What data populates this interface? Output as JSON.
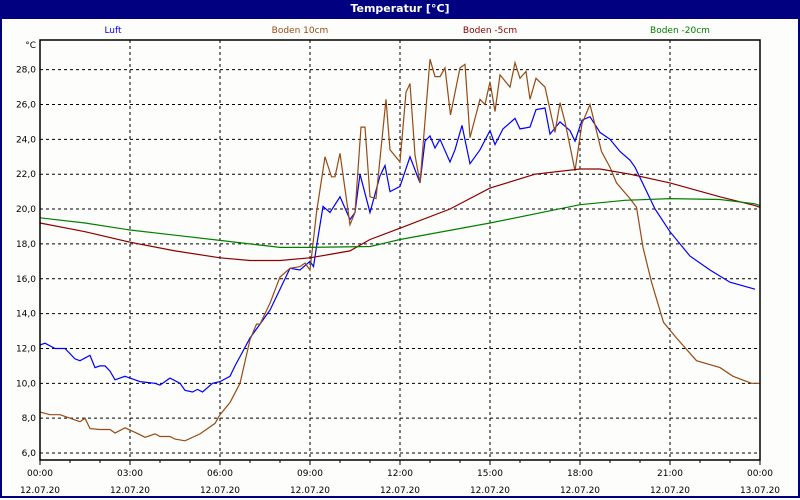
{
  "window": {
    "title": "Temperatur [°C]"
  },
  "chart_data": {
    "type": "line",
    "title": "Temperatur [°C]",
    "ylabel": "°C",
    "xlabel": "",
    "ylim": [
      5.6,
      29.7
    ],
    "xlim": [
      "12.07.20 00:00",
      "13.07.20 00:00"
    ],
    "grid": true,
    "legend_placement": "top",
    "y_ticks": [
      "6,0",
      "8,0",
      "10,0",
      "12,0",
      "14,0",
      "16,0",
      "18,0",
      "20,0",
      "22,0",
      "24,0",
      "26,0",
      "28,0"
    ],
    "x_ticks": [
      {
        "time": "00:00",
        "date": "12.07.20"
      },
      {
        "time": "03:00",
        "date": "12.07.20"
      },
      {
        "time": "06:00",
        "date": "12.07.20"
      },
      {
        "time": "09:00",
        "date": "12.07.20"
      },
      {
        "time": "12:00",
        "date": "12.07.20"
      },
      {
        "time": "15:00",
        "date": "12.07.20"
      },
      {
        "time": "18:00",
        "date": "12.07.20"
      },
      {
        "time": "21:00",
        "date": "12.07.20"
      },
      {
        "time": "00:00",
        "date": "13.07.20"
      }
    ],
    "series": [
      {
        "name": "Luft",
        "color": "#0000ff",
        "points": [
          [
            "12.07.20 00:00",
            12.2
          ],
          [
            "12.07.20 00:10",
            12.3
          ],
          [
            "12.07.20 00:30",
            12.0
          ],
          [
            "12.07.20 00:50",
            12.0
          ],
          [
            "12.07.20 01:10",
            11.4
          ],
          [
            "12.07.20 01:20",
            11.3
          ],
          [
            "12.07.20 01:40",
            11.6
          ],
          [
            "12.07.20 01:50",
            10.9
          ],
          [
            "12.07.20 02:00",
            11.0
          ],
          [
            "12.07.20 02:10",
            11.0
          ],
          [
            "12.07.20 02:20",
            10.7
          ],
          [
            "12.07.20 02:30",
            10.2
          ],
          [
            "12.07.20 02:50",
            10.4
          ],
          [
            "12.07.20 03:00",
            10.3
          ],
          [
            "12.07.20 03:20",
            10.1
          ],
          [
            "12.07.20 03:50",
            10.0
          ],
          [
            "12.07.20 04:00",
            9.9
          ],
          [
            "12.07.20 04:20",
            10.3
          ],
          [
            "12.07.20 04:40",
            10.0
          ],
          [
            "12.07.20 04:50",
            9.6
          ],
          [
            "12.07.20 05:05",
            9.5
          ],
          [
            "12.07.20 05:15",
            9.65
          ],
          [
            "12.07.20 05:25",
            9.5
          ],
          [
            "12.07.20 05:45",
            10.0
          ],
          [
            "12.07.20 06:00",
            10.1
          ],
          [
            "12.07.20 06:20",
            10.4
          ],
          [
            "12.07.20 06:30",
            11.0
          ],
          [
            "12.07.20 06:45",
            11.8
          ],
          [
            "12.07.20 07:00",
            12.6
          ],
          [
            "12.07.20 07:20",
            13.4
          ],
          [
            "12.07.20 07:40",
            14.2
          ],
          [
            "12.07.20 08:00",
            15.4
          ],
          [
            "12.07.20 08:20",
            16.6
          ],
          [
            "12.07.20 08:40",
            16.5
          ],
          [
            "12.07.20 09:00",
            17.0
          ],
          [
            "12.07.20 09:07",
            16.7
          ],
          [
            "12.07.20 09:15",
            18.2
          ],
          [
            "12.07.20 09:26",
            20.15
          ],
          [
            "12.07.20 09:40",
            19.8
          ],
          [
            "12.07.20 10:00",
            20.7
          ],
          [
            "12.07.20 10:20",
            19.4
          ],
          [
            "12.07.20 10:30",
            19.8
          ],
          [
            "12.07.20 10:40",
            22.0
          ],
          [
            "12.07.20 11:00",
            19.8
          ],
          [
            "12.07.20 11:20",
            21.9
          ],
          [
            "12.07.20 11:30",
            22.5
          ],
          [
            "12.07.20 11:40",
            21.0
          ],
          [
            "12.07.20 12:00",
            21.3
          ],
          [
            "12.07.20 12:20",
            23.0
          ],
          [
            "12.07.20 12:40",
            21.5
          ],
          [
            "12.07.20 12:50",
            23.9
          ],
          [
            "12.07.20 13:00",
            24.2
          ],
          [
            "12.07.20 13:10",
            23.5
          ],
          [
            "12.07.20 13:20",
            24.0
          ],
          [
            "12.07.20 13:40",
            22.7
          ],
          [
            "12.07.20 13:50",
            23.4
          ],
          [
            "12.07.20 14:04",
            24.8
          ],
          [
            "12.07.20 14:20",
            22.6
          ],
          [
            "12.07.20 14:40",
            23.4
          ],
          [
            "12.07.20 15:00",
            24.5
          ],
          [
            "12.07.20 15:10",
            23.7
          ],
          [
            "12.07.20 15:26",
            24.6
          ],
          [
            "12.07.20 15:50",
            25.2
          ],
          [
            "12.07.20 16:00",
            24.6
          ],
          [
            "12.07.20 16:20",
            24.7
          ],
          [
            "12.07.20 16:32",
            25.7
          ],
          [
            "12.07.20 16:50",
            25.8
          ],
          [
            "12.07.20 17:00",
            24.3
          ],
          [
            "12.07.20 17:20",
            25.0
          ],
          [
            "12.07.20 17:40",
            24.5
          ],
          [
            "12.07.20 17:50",
            23.9
          ],
          [
            "12.07.20 18:04",
            25.1
          ],
          [
            "12.07.20 18:20",
            25.3
          ],
          [
            "12.07.20 18:40",
            24.4
          ],
          [
            "12.07.20 19:00",
            24.0
          ],
          [
            "12.07.20 19:20",
            23.3
          ],
          [
            "12.07.20 19:40",
            22.8
          ],
          [
            "12.07.20 19:50",
            22.4
          ],
          [
            "12.07.20 20:30",
            20.0
          ],
          [
            "12.07.20 21:00",
            18.7
          ],
          [
            "12.07.20 21:40",
            17.3
          ],
          [
            "12.07.20 22:20",
            16.5
          ],
          [
            "12.07.20 23:00",
            15.8
          ],
          [
            "12.07.20 23:50",
            15.4
          ]
        ]
      },
      {
        "name": "Boden 10cm",
        "color": "#964b14",
        "points": [
          [
            "12.07.20 00:00",
            8.35
          ],
          [
            "12.07.20 00:20",
            8.2
          ],
          [
            "12.07.20 00:40",
            8.2
          ],
          [
            "12.07.20 01:20",
            7.8
          ],
          [
            "12.07.20 01:30",
            8.0
          ],
          [
            "12.07.20 01:40",
            7.4
          ],
          [
            "12.07.20 02:00",
            7.35
          ],
          [
            "12.07.20 02:20",
            7.35
          ],
          [
            "12.07.20 02:30",
            7.15
          ],
          [
            "12.07.20 02:50",
            7.45
          ],
          [
            "12.07.20 03:20",
            7.05
          ],
          [
            "12.07.20 03:30",
            6.9
          ],
          [
            "12.07.20 03:50",
            7.1
          ],
          [
            "12.07.20 04:00",
            6.95
          ],
          [
            "12.07.20 04:20",
            6.95
          ],
          [
            "12.07.20 04:30",
            6.8
          ],
          [
            "12.07.20 04:50",
            6.7
          ],
          [
            "12.07.20 05:20",
            7.1
          ],
          [
            "12.07.20 05:40",
            7.5
          ],
          [
            "12.07.20 05:50",
            7.7
          ],
          [
            "12.07.20 06:00",
            8.2
          ],
          [
            "12.07.20 06:20",
            8.9
          ],
          [
            "12.07.20 06:40",
            10.0
          ],
          [
            "12.07.20 07:00",
            12.5
          ],
          [
            "12.07.20 07:13",
            13.4
          ],
          [
            "12.07.20 07:20",
            13.4
          ],
          [
            "12.07.20 07:40",
            14.6
          ],
          [
            "12.07.20 08:00",
            16.1
          ],
          [
            "12.07.20 08:20",
            16.6
          ],
          [
            "12.07.20 08:40",
            16.7
          ],
          [
            "12.07.20 08:50",
            16.9
          ],
          [
            "12.07.20 09:00",
            16.5
          ],
          [
            "12.07.20 09:13",
            19.8
          ],
          [
            "12.07.20 09:30",
            23.0
          ],
          [
            "12.07.20 09:43",
            21.85
          ],
          [
            "12.07.20 09:50",
            21.85
          ],
          [
            "12.07.20 10:00",
            23.2
          ],
          [
            "12.07.20 10:20",
            19.1
          ],
          [
            "12.07.20 10:30",
            19.8
          ],
          [
            "12.07.20 10:42",
            24.7
          ],
          [
            "12.07.20 10:50",
            24.7
          ],
          [
            "12.07.20 11:00",
            20.7
          ],
          [
            "12.07.20 11:12",
            20.6
          ],
          [
            "12.07.20 11:32",
            26.3
          ],
          [
            "12.07.20 11:40",
            23.4
          ],
          [
            "12.07.20 12:00",
            22.7
          ],
          [
            "12.07.20 12:12",
            26.7
          ],
          [
            "12.07.20 12:20",
            27.2
          ],
          [
            "12.07.20 12:30",
            23.1
          ],
          [
            "12.07.20 12:40",
            21.5
          ],
          [
            "12.07.20 13:00",
            28.6
          ],
          [
            "12.07.20 13:10",
            27.6
          ],
          [
            "12.07.20 13:20",
            27.6
          ],
          [
            "12.07.20 13:30",
            28.1
          ],
          [
            "12.07.20 13:41",
            25.4
          ],
          [
            "12.07.20 14:00",
            28.1
          ],
          [
            "12.07.20 14:10",
            28.3
          ],
          [
            "12.07.20 14:20",
            24.1
          ],
          [
            "12.07.20 14:40",
            26.3
          ],
          [
            "12.07.20 14:50",
            26.0
          ],
          [
            "12.07.20 15:00",
            27.3
          ],
          [
            "12.07.20 15:10",
            25.6
          ],
          [
            "12.07.20 15:20",
            27.7
          ],
          [
            "12.07.20 15:40",
            27.0
          ],
          [
            "12.07.20 15:50",
            28.4
          ],
          [
            "12.07.20 16:00",
            27.5
          ],
          [
            "12.07.20 16:12",
            27.9
          ],
          [
            "12.07.20 16:20",
            26.3
          ],
          [
            "12.07.20 16:32",
            27.5
          ],
          [
            "12.07.20 16:50",
            27.0
          ],
          [
            "12.07.20 17:10",
            24.4
          ],
          [
            "12.07.20 17:20",
            26.1
          ],
          [
            "12.07.20 17:30",
            25.0
          ],
          [
            "12.07.20 17:50",
            22.2
          ],
          [
            "12.07.20 18:04",
            24.9
          ],
          [
            "12.07.20 18:20",
            26.0
          ],
          [
            "12.07.20 18:43",
            23.3
          ],
          [
            "12.07.20 19:00",
            22.4
          ],
          [
            "12.07.20 19:13",
            21.5
          ],
          [
            "12.07.20 19:40",
            20.6
          ],
          [
            "12.07.20 19:53",
            20.1
          ],
          [
            "12.07.20 20:06",
            17.8
          ],
          [
            "12.07.20 20:23",
            15.8
          ],
          [
            "12.07.20 20:47",
            13.5
          ],
          [
            "12.07.20 21:13",
            12.6
          ],
          [
            "12.07.20 21:53",
            11.3
          ],
          [
            "12.07.20 22:40",
            10.9
          ],
          [
            "12.07.20 23:06",
            10.4
          ],
          [
            "12.07.20 23:43",
            10.0
          ],
          [
            "13.07.20 00:00",
            10.0
          ]
        ]
      },
      {
        "name": "Boden -5cm",
        "color": "#8b0000",
        "points": [
          [
            "12.07.20 00:00",
            19.2
          ],
          [
            "12.07.20 01:30",
            18.7
          ],
          [
            "12.07.20 03:00",
            18.1
          ],
          [
            "12.07.20 04:30",
            17.6
          ],
          [
            "12.07.20 06:00",
            17.2
          ],
          [
            "12.07.20 07:00",
            17.05
          ],
          [
            "12.07.20 08:00",
            17.05
          ],
          [
            "12.07.20 09:00",
            17.2
          ],
          [
            "12.07.20 09:40",
            17.4
          ],
          [
            "12.07.20 10:20",
            17.6
          ],
          [
            "12.07.20 11:00",
            18.25
          ],
          [
            "12.07.20 12:00",
            18.9
          ],
          [
            "12.07.20 13:40",
            20.0
          ],
          [
            "12.07.20 15:00",
            21.2
          ],
          [
            "12.07.20 16:30",
            22.0
          ],
          [
            "12.07.20 18:00",
            22.3
          ],
          [
            "12.07.20 18:40",
            22.3
          ],
          [
            "12.07.20 19:40",
            22.0
          ],
          [
            "12.07.20 21:00",
            21.5
          ],
          [
            "12.07.20 22:40",
            20.7
          ],
          [
            "12.07.20 23:50",
            20.2
          ],
          [
            "13.07.20 00:00",
            20.1
          ]
        ]
      },
      {
        "name": "Boden -20cm",
        "color": "#008000",
        "points": [
          [
            "12.07.20 00:00",
            19.5
          ],
          [
            "12.07.20 01:30",
            19.2
          ],
          [
            "12.07.20 03:00",
            18.8
          ],
          [
            "12.07.20 04:30",
            18.5
          ],
          [
            "12.07.20 06:00",
            18.2
          ],
          [
            "12.07.20 08:00",
            17.8
          ],
          [
            "12.07.20 09:00",
            17.8
          ],
          [
            "12.07.20 11:00",
            17.85
          ],
          [
            "12.07.20 12:00",
            18.25
          ],
          [
            "12.07.20 15:00",
            19.2
          ],
          [
            "12.07.20 18:00",
            20.25
          ],
          [
            "12.07.20 19:30",
            20.5
          ],
          [
            "12.07.20 21:00",
            20.6
          ],
          [
            "12.07.20 22:40",
            20.55
          ],
          [
            "12.07.20 23:50",
            20.3
          ],
          [
            "13.07.20 00:00",
            20.2
          ]
        ]
      }
    ]
  }
}
